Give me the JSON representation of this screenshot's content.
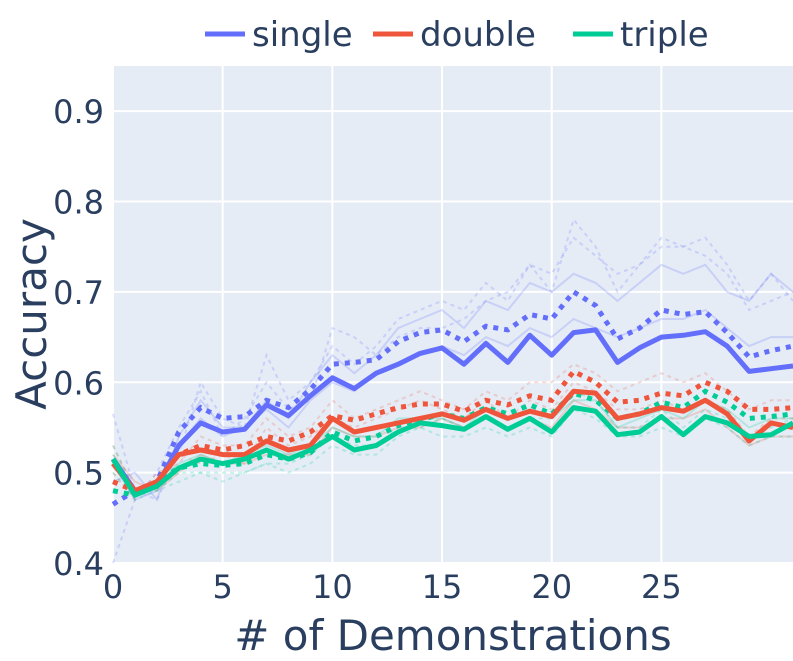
{
  "chart_data": {
    "type": "line",
    "xlabel": "# of Demonstrations",
    "ylabel": "Accuracy",
    "xlim": [
      0,
      31
    ],
    "ylim": [
      0.4,
      0.95
    ],
    "xticks": [
      0,
      5,
      10,
      15,
      20,
      25
    ],
    "xtick_labels": [
      "0",
      "5",
      "10",
      "15",
      "20",
      "25"
    ],
    "yticks": [
      0.4,
      0.5,
      0.6,
      0.7,
      0.8,
      0.9
    ],
    "ytick_labels": [
      "0.4",
      "0.5",
      "0.6",
      "0.7",
      "0.8",
      "0.9"
    ],
    "legend_position": "top",
    "background": "#e5ecf6",
    "grid": true,
    "x": [
      0,
      1,
      2,
      3,
      4,
      5,
      6,
      7,
      8,
      9,
      10,
      11,
      12,
      13,
      14,
      15,
      16,
      17,
      18,
      19,
      20,
      21,
      22,
      23,
      24,
      25,
      26,
      27,
      28,
      29,
      30,
      31
    ],
    "series": [
      {
        "name": "single",
        "color": "#636efa",
        "solid": [
          0.515,
          0.48,
          0.485,
          0.53,
          0.555,
          0.545,
          0.548,
          0.575,
          0.563,
          0.585,
          0.605,
          0.593,
          0.61,
          0.62,
          0.632,
          0.638,
          0.62,
          0.643,
          0.622,
          0.652,
          0.63,
          0.655,
          0.658,
          0.622,
          0.638,
          0.65,
          0.652,
          0.656,
          0.64,
          0.612,
          0.615,
          0.618
        ],
        "dotted": [
          0.465,
          0.48,
          0.49,
          0.545,
          0.572,
          0.56,
          0.562,
          0.58,
          0.572,
          0.592,
          0.62,
          0.622,
          0.625,
          0.645,
          0.655,
          0.658,
          0.645,
          0.662,
          0.658,
          0.675,
          0.67,
          0.7,
          0.685,
          0.648,
          0.66,
          0.68,
          0.675,
          0.678,
          0.655,
          0.628,
          0.635,
          0.64
        ],
        "faint": [
          [
            0.565,
            0.48,
            0.47,
            0.52,
            0.6,
            0.56,
            0.55,
            0.63,
            0.58,
            0.6,
            0.64,
            0.62,
            0.64,
            0.67,
            0.68,
            0.69,
            0.68,
            0.71,
            0.69,
            0.73,
            0.7,
            0.78,
            0.75,
            0.7,
            0.73,
            0.75,
            0.75,
            0.76,
            0.73,
            0.69,
            0.72,
            0.69
          ],
          [
            0.49,
            0.5,
            0.47,
            0.54,
            0.58,
            0.55,
            0.55,
            0.58,
            0.56,
            0.6,
            0.63,
            0.61,
            0.63,
            0.66,
            0.67,
            0.68,
            0.66,
            0.69,
            0.68,
            0.71,
            0.7,
            0.72,
            0.71,
            0.69,
            0.71,
            0.73,
            0.72,
            0.73,
            0.7,
            0.69,
            0.72,
            0.7
          ],
          [
            0.4,
            0.47,
            0.5,
            0.55,
            0.59,
            0.54,
            0.56,
            0.6,
            0.57,
            0.58,
            0.66,
            0.65,
            0.63,
            0.65,
            0.66,
            0.66,
            0.67,
            0.69,
            0.7,
            0.73,
            0.72,
            0.76,
            0.74,
            0.72,
            0.73,
            0.76,
            0.75,
            0.74,
            0.72,
            0.68,
            0.69,
            0.7
          ],
          [
            0.51,
            0.47,
            0.48,
            0.53,
            0.56,
            0.54,
            0.55,
            0.57,
            0.55,
            0.58,
            0.6,
            0.59,
            0.61,
            0.62,
            0.63,
            0.64,
            0.63,
            0.65,
            0.64,
            0.66,
            0.65,
            0.67,
            0.66,
            0.65,
            0.66,
            0.67,
            0.67,
            0.68,
            0.66,
            0.64,
            0.65,
            0.65
          ]
        ]
      },
      {
        "name": "double",
        "color": "#ef553b",
        "solid": [
          0.51,
          0.48,
          0.49,
          0.52,
          0.525,
          0.52,
          0.52,
          0.535,
          0.525,
          0.53,
          0.56,
          0.545,
          0.55,
          0.555,
          0.56,
          0.565,
          0.558,
          0.57,
          0.56,
          0.568,
          0.562,
          0.59,
          0.588,
          0.56,
          0.565,
          0.572,
          0.568,
          0.58,
          0.565,
          0.535,
          0.555,
          0.55
        ],
        "dotted": [
          0.49,
          0.48,
          0.49,
          0.52,
          0.53,
          0.525,
          0.53,
          0.54,
          0.535,
          0.545,
          0.563,
          0.558,
          0.565,
          0.572,
          0.576,
          0.576,
          0.568,
          0.58,
          0.575,
          0.585,
          0.58,
          0.612,
          0.6,
          0.578,
          0.58,
          0.588,
          0.585,
          0.6,
          0.59,
          0.57,
          0.57,
          0.572
        ],
        "faint": [
          [
            0.5,
            0.47,
            0.5,
            0.51,
            0.54,
            0.53,
            0.53,
            0.56,
            0.54,
            0.55,
            0.58,
            0.56,
            0.57,
            0.58,
            0.59,
            0.58,
            0.57,
            0.59,
            0.58,
            0.6,
            0.6,
            0.62,
            0.61,
            0.59,
            0.6,
            0.61,
            0.6,
            0.61,
            0.59,
            0.57,
            0.58,
            0.58
          ],
          [
            0.52,
            0.49,
            0.48,
            0.5,
            0.52,
            0.51,
            0.51,
            0.52,
            0.52,
            0.52,
            0.55,
            0.54,
            0.54,
            0.55,
            0.55,
            0.56,
            0.55,
            0.56,
            0.55,
            0.56,
            0.55,
            0.58,
            0.57,
            0.55,
            0.55,
            0.56,
            0.56,
            0.57,
            0.55,
            0.53,
            0.54,
            0.54
          ],
          [
            0.53,
            0.48,
            0.49,
            0.52,
            0.51,
            0.52,
            0.51,
            0.55,
            0.53,
            0.54,
            0.56,
            0.55,
            0.56,
            0.57,
            0.58,
            0.57,
            0.56,
            0.58,
            0.56,
            0.58,
            0.57,
            0.6,
            0.59,
            0.57,
            0.57,
            0.58,
            0.57,
            0.58,
            0.57,
            0.54,
            0.56,
            0.56
          ]
        ]
      },
      {
        "name": "triple",
        "color": "#00cc96",
        "solid": [
          0.515,
          0.475,
          0.485,
          0.505,
          0.515,
          0.51,
          0.515,
          0.525,
          0.515,
          0.525,
          0.54,
          0.525,
          0.53,
          0.545,
          0.555,
          0.552,
          0.548,
          0.562,
          0.548,
          0.56,
          0.545,
          0.572,
          0.568,
          0.542,
          0.545,
          0.562,
          0.542,
          0.562,
          0.555,
          0.54,
          0.542,
          0.555
        ],
        "dotted": [
          0.48,
          0.475,
          0.49,
          0.505,
          0.51,
          0.508,
          0.51,
          0.52,
          0.515,
          0.522,
          0.545,
          0.535,
          0.54,
          0.552,
          0.558,
          0.565,
          0.56,
          0.572,
          0.565,
          0.575,
          0.565,
          0.588,
          0.58,
          0.56,
          0.565,
          0.578,
          0.572,
          0.59,
          0.578,
          0.56,
          0.562,
          0.565
        ],
        "faint": [
          [
            0.5,
            0.47,
            0.48,
            0.49,
            0.5,
            0.49,
            0.5,
            0.51,
            0.5,
            0.51,
            0.53,
            0.52,
            0.52,
            0.54,
            0.55,
            0.54,
            0.54,
            0.55,
            0.54,
            0.55,
            0.54,
            0.57,
            0.56,
            0.54,
            0.54,
            0.55,
            0.54,
            0.56,
            0.55,
            0.53,
            0.54,
            0.54
          ],
          [
            0.52,
            0.48,
            0.49,
            0.51,
            0.52,
            0.51,
            0.52,
            0.53,
            0.52,
            0.53,
            0.55,
            0.54,
            0.54,
            0.56,
            0.56,
            0.56,
            0.55,
            0.57,
            0.56,
            0.57,
            0.56,
            0.58,
            0.58,
            0.55,
            0.56,
            0.57,
            0.56,
            0.58,
            0.57,
            0.55,
            0.56,
            0.56
          ],
          [
            0.53,
            0.48,
            0.48,
            0.5,
            0.5,
            0.5,
            0.5,
            0.51,
            0.51,
            0.52,
            0.54,
            0.53,
            0.53,
            0.55,
            0.55,
            0.56,
            0.55,
            0.56,
            0.55,
            0.56,
            0.56,
            0.59,
            0.58,
            0.55,
            0.55,
            0.57,
            0.55,
            0.57,
            0.56,
            0.54,
            0.55,
            0.56
          ]
        ]
      }
    ]
  }
}
